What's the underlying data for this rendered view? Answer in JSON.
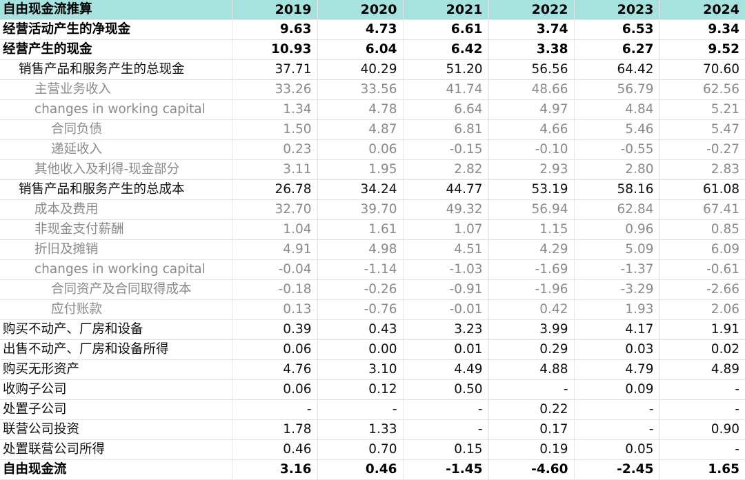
{
  "table": {
    "title": "自由现金流推算",
    "years": [
      "2019",
      "2020",
      "2021",
      "2022",
      "2023",
      "2024"
    ],
    "rows": [
      {
        "label": "经营活动产生的净现金",
        "style": "bold",
        "level": 0,
        "values": [
          "9.63",
          "4.73",
          "6.61",
          "3.74",
          "6.53",
          "9.34"
        ]
      },
      {
        "label": "经营产生的现金",
        "style": "bold",
        "level": 0,
        "values": [
          "10.93",
          "6.04",
          "6.42",
          "3.38",
          "6.27",
          "9.52"
        ]
      },
      {
        "label": "销售产品和服务产生的总现金",
        "style": "normal",
        "level": 1,
        "values": [
          "37.71",
          "40.29",
          "51.20",
          "56.56",
          "64.42",
          "70.60"
        ]
      },
      {
        "label": "主营业务收入",
        "style": "gray",
        "level": 2,
        "values": [
          "33.26",
          "33.56",
          "41.74",
          "48.66",
          "56.79",
          "62.56"
        ]
      },
      {
        "label": "changes in working capital",
        "style": "gray",
        "level": 2,
        "values": [
          "1.34",
          "4.78",
          "6.64",
          "4.97",
          "4.84",
          "5.21"
        ]
      },
      {
        "label": "合同负债",
        "style": "gray",
        "level": 3,
        "values": [
          "1.50",
          "4.87",
          "6.81",
          "4.66",
          "5.46",
          "5.47"
        ]
      },
      {
        "label": "递延收入",
        "style": "gray",
        "level": 3,
        "values": [
          "0.23",
          "0.06",
          "-0.15",
          "-0.10",
          "-0.55",
          "-0.27"
        ]
      },
      {
        "label": "其他收入及利得-现金部分",
        "style": "gray",
        "level": 2,
        "values": [
          "3.11",
          "1.95",
          "2.82",
          "2.93",
          "2.80",
          "2.83"
        ]
      },
      {
        "label": "销售产品和服务产生的总成本",
        "style": "normal",
        "level": 1,
        "values": [
          "26.78",
          "34.24",
          "44.77",
          "53.19",
          "58.16",
          "61.08"
        ]
      },
      {
        "label": "成本及费用",
        "style": "gray",
        "level": 2,
        "values": [
          "32.70",
          "39.70",
          "49.32",
          "56.94",
          "62.84",
          "67.41"
        ]
      },
      {
        "label": "非现金支付薪酬",
        "style": "gray",
        "level": 2,
        "values": [
          "1.04",
          "1.61",
          "1.07",
          "1.15",
          "0.96",
          "0.85"
        ]
      },
      {
        "label": "折旧及摊销",
        "style": "gray",
        "level": 2,
        "values": [
          "4.91",
          "4.98",
          "4.51",
          "4.29",
          "5.09",
          "6.09"
        ]
      },
      {
        "label": "changes in working capital",
        "style": "gray",
        "level": 2,
        "values": [
          "-0.04",
          "-1.14",
          "-1.03",
          "-1.69",
          "-1.37",
          "-0.61"
        ]
      },
      {
        "label": "合同资产及合同取得成本",
        "style": "gray",
        "level": 3,
        "values": [
          "-0.18",
          "-0.26",
          "-0.91",
          "-1.96",
          "-3.29",
          "-2.66"
        ]
      },
      {
        "label": "应付账款",
        "style": "gray",
        "level": 3,
        "values": [
          "0.13",
          "-0.76",
          "-0.01",
          "0.42",
          "1.93",
          "2.06"
        ]
      },
      {
        "label": "购买不动产、厂房和设备",
        "style": "normal",
        "level": 0,
        "values": [
          "0.39",
          "0.43",
          "3.23",
          "3.99",
          "4.17",
          "1.91"
        ]
      },
      {
        "label": "出售不动产、厂房和设备所得",
        "style": "normal",
        "level": 0,
        "values": [
          "0.06",
          "0.00",
          "0.01",
          "0.29",
          "0.03",
          "0.02"
        ]
      },
      {
        "label": "购买无形资产",
        "style": "normal",
        "level": 0,
        "values": [
          "4.76",
          "3.10",
          "4.49",
          "4.88",
          "4.79",
          "4.89"
        ]
      },
      {
        "label": "收购子公司",
        "style": "normal",
        "level": 0,
        "values": [
          "0.06",
          "0.12",
          "0.50",
          "-",
          "0.09",
          "-"
        ]
      },
      {
        "label": "处置子公司",
        "style": "normal",
        "level": 0,
        "values": [
          "-",
          "-",
          "-",
          "0.22",
          "-",
          "-"
        ]
      },
      {
        "label": "联营公司投资",
        "style": "normal",
        "level": 0,
        "values": [
          "1.78",
          "1.33",
          "-",
          "0.17",
          "-",
          "0.90"
        ]
      },
      {
        "label": "处置联营公司所得",
        "style": "normal",
        "level": 0,
        "values": [
          "0.46",
          "0.70",
          "0.15",
          "0.19",
          "0.05",
          "-"
        ]
      },
      {
        "label": "自由现金流",
        "style": "bold",
        "level": 0,
        "values": [
          "3.16",
          "0.46",
          "-1.45",
          "-4.60",
          "-2.45",
          "1.65"
        ]
      }
    ]
  },
  "colors": {
    "header_bg": "#a6e3df",
    "text": "#111111",
    "muted_text": "#8a8a8a"
  }
}
